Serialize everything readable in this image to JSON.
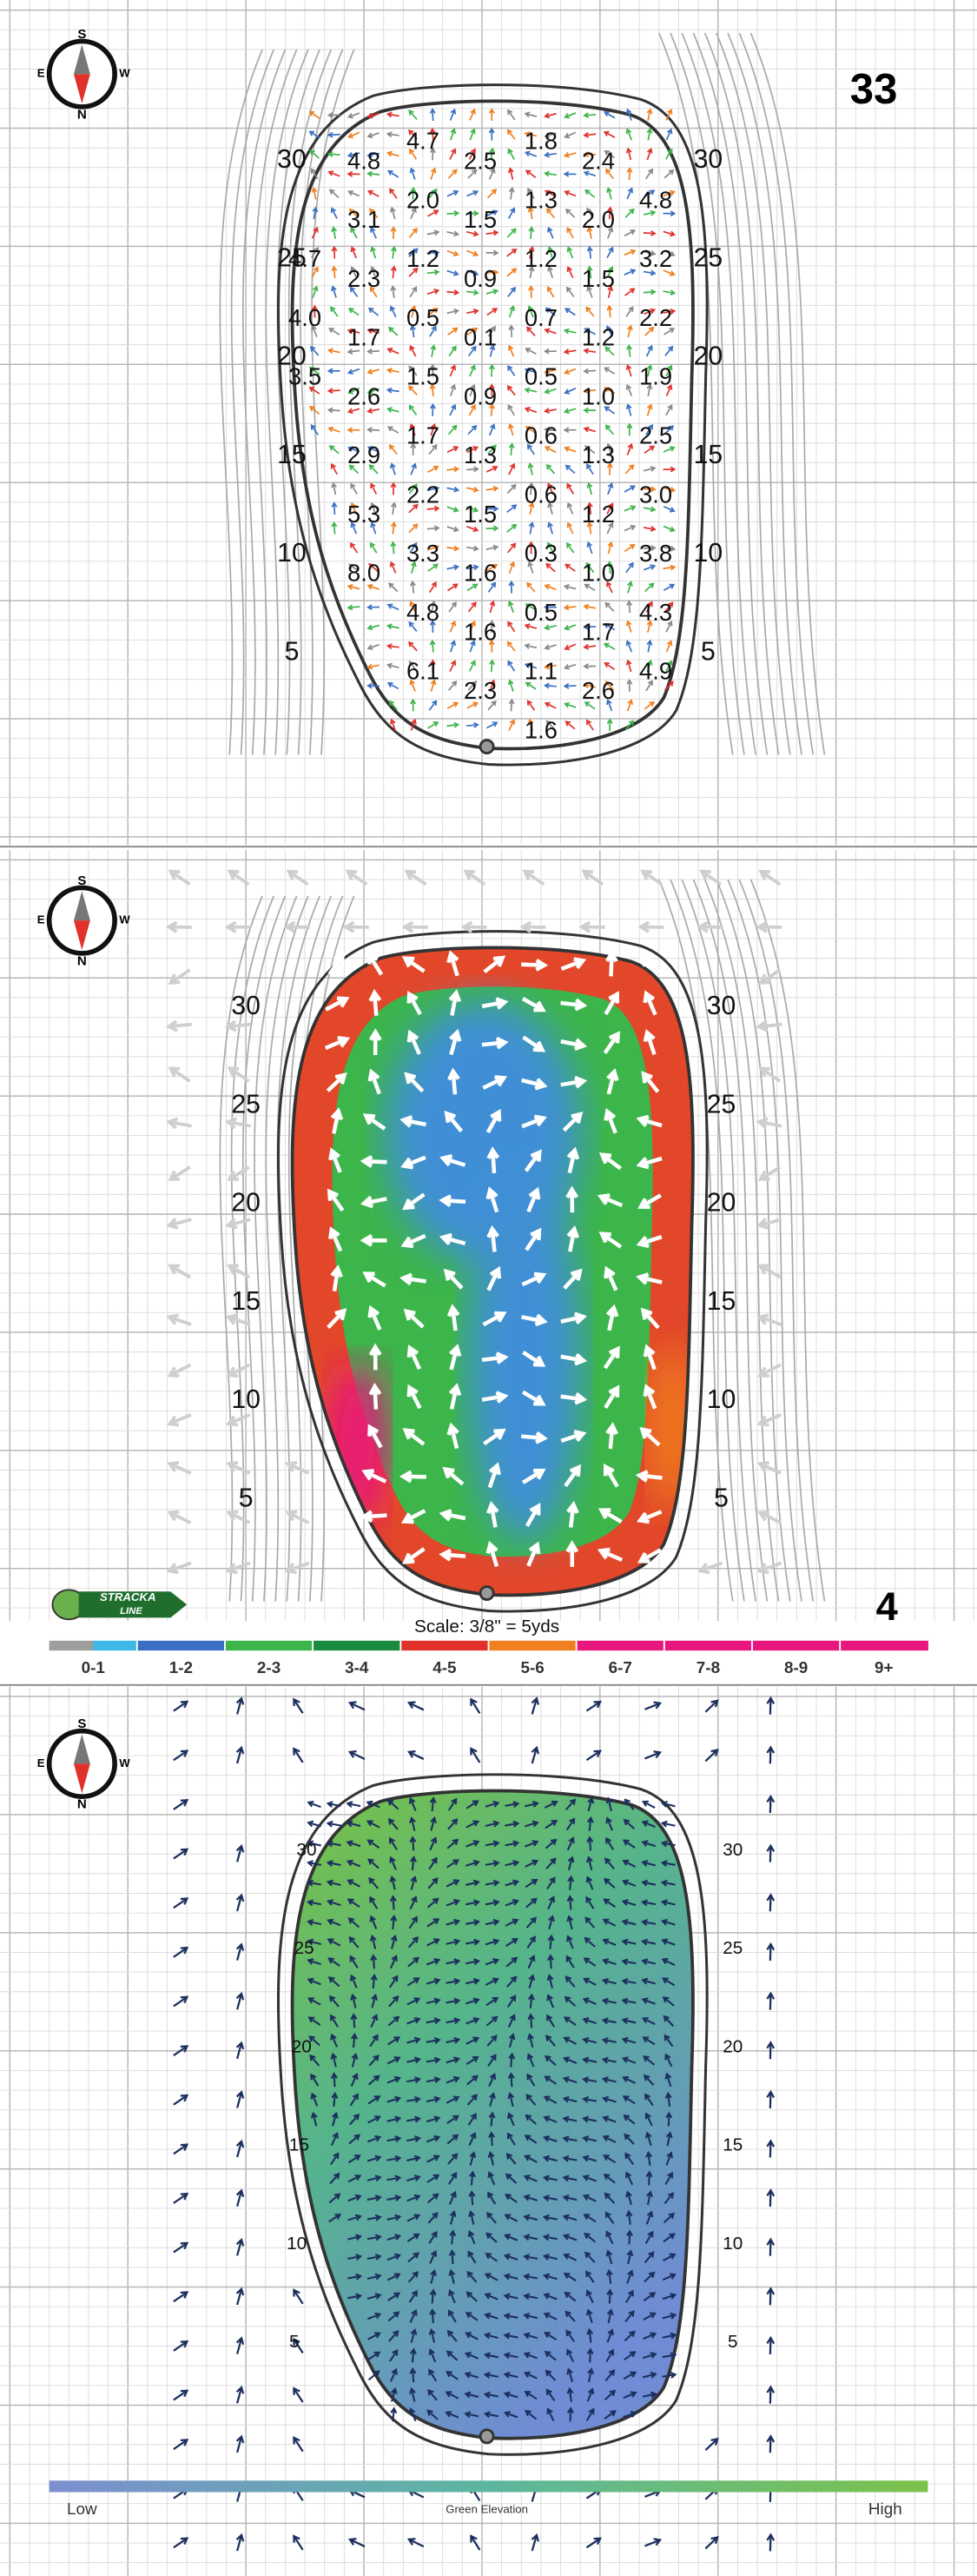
{
  "hole_number": "33",
  "page_number": "4",
  "compass": {
    "top": "S",
    "right": "W",
    "bottom": "N",
    "left": "E"
  },
  "slope_panel": {
    "distances": [
      "30",
      "25",
      "20",
      "15",
      "10",
      "5"
    ],
    "slope_grid": [
      [
        null,
        null,
        "4.7",
        null,
        "1.8",
        null,
        null
      ],
      [
        null,
        "4.8",
        null,
        "2.5",
        null,
        "2.4",
        null
      ],
      [
        null,
        null,
        "2.0",
        null,
        "1.3",
        null,
        "4.8"
      ],
      [
        null,
        "3.1",
        null,
        "1.5",
        null,
        "2.0",
        null
      ],
      [
        "4.7",
        null,
        "1.2",
        null,
        "1.2",
        null,
        "3.2"
      ],
      [
        null,
        "2.3",
        null,
        "0.9",
        null,
        "1.5",
        null
      ],
      [
        "4.0",
        null,
        "0.5",
        null,
        "0.7",
        null,
        "2.2"
      ],
      [
        null,
        "1.7",
        null,
        "0.1",
        null,
        "1.2",
        null
      ],
      [
        "3.5",
        null,
        "1.5",
        null,
        "0.5",
        null,
        "1.9"
      ],
      [
        null,
        "2.6",
        null,
        "0.9",
        null,
        "1.0",
        null
      ],
      [
        null,
        null,
        "1.7",
        null,
        "0.6",
        null,
        "2.5"
      ],
      [
        null,
        "2.9",
        null,
        "1.3",
        null,
        "1.3",
        null
      ],
      [
        null,
        null,
        "2.2",
        null,
        "0.6",
        null,
        "3.0"
      ],
      [
        null,
        "5.3",
        null,
        "1.5",
        null,
        "1.2",
        null
      ],
      [
        null,
        null,
        "3.3",
        null,
        "0.3",
        null,
        "3.8"
      ],
      [
        null,
        "8.0",
        null,
        "1.6",
        null,
        "1.0",
        null
      ],
      [
        null,
        null,
        "4.8",
        null,
        "0.5",
        null,
        "4.3"
      ],
      [
        null,
        null,
        null,
        "1.6",
        null,
        "1.7",
        null
      ],
      [
        null,
        null,
        "6.1",
        null,
        "1.1",
        null,
        "4.9"
      ],
      [
        null,
        null,
        null,
        "2.3",
        null,
        "2.6",
        null
      ],
      [
        null,
        null,
        null,
        null,
        "1.6",
        null,
        null
      ]
    ]
  },
  "heat_panel": {
    "distances": [
      "30",
      "25",
      "20",
      "15",
      "10",
      "5"
    ]
  },
  "elevation_panel": {
    "distances": [
      "30",
      "25",
      "20",
      "15",
      "10",
      "5"
    ]
  },
  "logo": {
    "top": "STRACKA",
    "bottom": "LINE"
  },
  "scale": "Scale: 3/8\" = 5yds",
  "legend": [
    {
      "label": "0-1",
      "colors": [
        "#9e9e9e",
        "#3fb8e8"
      ]
    },
    {
      "label": "1-2",
      "colors": [
        "#3a6fc4"
      ]
    },
    {
      "label": "2-3",
      "colors": [
        "#3db54a"
      ]
    },
    {
      "label": "3-4",
      "colors": [
        "#1a8a3e"
      ]
    },
    {
      "label": "4-5",
      "colors": [
        "#e0312b"
      ]
    },
    {
      "label": "5-6",
      "colors": [
        "#f07f1f"
      ]
    },
    {
      "label": "6-7",
      "colors": [
        "#e8177d"
      ]
    },
    {
      "label": "7-8",
      "colors": [
        "#e8177d"
      ]
    },
    {
      "label": "8-9",
      "colors": [
        "#e8177d"
      ]
    },
    {
      "label": "9+",
      "colors": [
        "#e8177d"
      ]
    }
  ],
  "elevation_legend": {
    "low": "Low",
    "title": "Green Elevation",
    "high": "High"
  }
}
